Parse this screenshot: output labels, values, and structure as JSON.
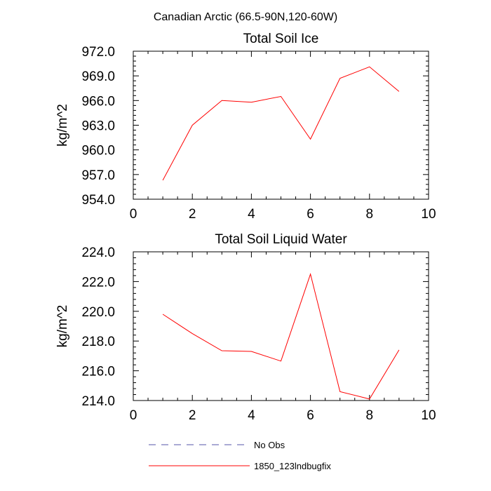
{
  "figure": {
    "title": "Canadian Arctic (66.5-90N,120-60W)"
  },
  "chart_data": [
    {
      "type": "line",
      "title": "Total Soil Ice",
      "ylabel": "kg/m^2",
      "xlabel": "",
      "xlim": [
        0,
        10
      ],
      "ylim": [
        954.0,
        972.0
      ],
      "x_ticks": [
        0,
        2,
        4,
        6,
        8,
        10
      ],
      "x_tick_labels": [
        "0",
        "2",
        "4",
        "6",
        "8",
        "10"
      ],
      "y_ticks": [
        954.0,
        957.0,
        960.0,
        963.0,
        966.0,
        969.0,
        972.0
      ],
      "y_tick_labels": [
        "954.0",
        "957.0",
        "960.0",
        "963.0",
        "966.0",
        "969.0",
        "972.0"
      ],
      "series": [
        {
          "name": "1850_123lndbugfix",
          "color": "#ff0000",
          "x": [
            1,
            2,
            3,
            4,
            5,
            6,
            7,
            8,
            9
          ],
          "y": [
            956.3,
            963.0,
            966.0,
            965.8,
            966.5,
            961.3,
            968.7,
            970.1,
            967.1
          ]
        }
      ]
    },
    {
      "type": "line",
      "title": "Total Soil Liquid Water",
      "ylabel": "kg/m^2",
      "xlabel": "",
      "xlim": [
        0,
        10
      ],
      "ylim": [
        214.0,
        224.0
      ],
      "x_ticks": [
        0,
        2,
        4,
        6,
        8,
        10
      ],
      "x_tick_labels": [
        "0",
        "2",
        "4",
        "6",
        "8",
        "10"
      ],
      "y_ticks": [
        214.0,
        216.0,
        218.0,
        220.0,
        222.0,
        224.0
      ],
      "y_tick_labels": [
        "214.0",
        "216.0",
        "218.0",
        "220.0",
        "222.0",
        "224.0"
      ],
      "series": [
        {
          "name": "1850_123lndbugfix",
          "color": "#ff0000",
          "x": [
            1,
            2,
            3,
            4,
            5,
            6,
            7,
            8,
            9
          ],
          "y": [
            219.8,
            218.5,
            217.35,
            217.3,
            216.65,
            222.5,
            214.6,
            214.1,
            217.4
          ]
        }
      ]
    }
  ],
  "legend": {
    "placement": "bottom",
    "entries": [
      {
        "label": "No Obs",
        "color": "#5555aa",
        "style": "dashed"
      },
      {
        "label": "1850_123lndbugfix",
        "color": "#ff0000",
        "style": "solid"
      }
    ]
  }
}
